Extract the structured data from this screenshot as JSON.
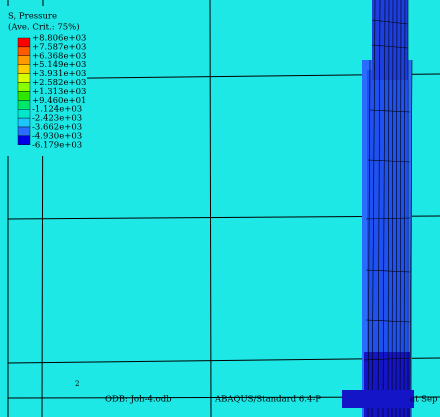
{
  "legend": {
    "title": "S, Pressure",
    "subtitle": "(Ave. Crit.: 75%)",
    "labels": [
      "+8.806e+03",
      "+7.587e+03",
      "+6.368e+03",
      "+5.149e+03",
      "+3.931e+03",
      "+2.582e+03",
      "+1.313e+03",
      "+9.460e+01",
      "-1.124e+03",
      "-2.423e+03",
      "-3.662e+03",
      "-4.930e+03",
      "-6.179e+03"
    ],
    "colors": [
      "#ff0000",
      "#ff5a00",
      "#ff9900",
      "#ffcc00",
      "#d8ff00",
      "#88ff00",
      "#2ee800",
      "#00e86a",
      "#00e8cc",
      "#1ec6ff",
      "#2a6cff",
      "#0000e8"
    ]
  },
  "axis_label": "2",
  "footer": {
    "odb": "ODB: Joh-4.odb",
    "solver": "ABAQUS/Standard 6.4-P",
    "date": "at Sep"
  }
}
